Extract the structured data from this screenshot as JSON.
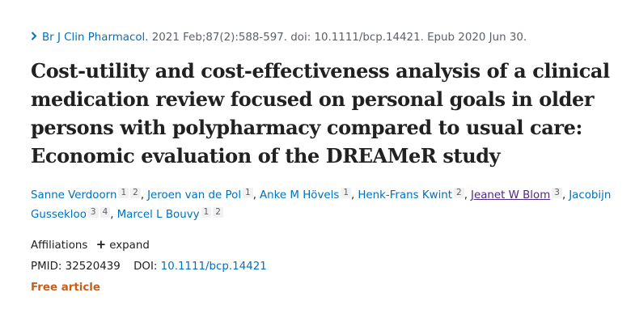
{
  "citation": {
    "chevron_icon": "chevron-right-icon",
    "journal": "Br J Clin Pharmacol.",
    "details": " 2021 Feb;87(2):588-597. doi: 10.1111/bcp.14421. Epub 2020 Jun 30."
  },
  "title": "Cost-utility and cost-effectiveness analysis of a clinical medication review focused on personal goals in older persons with polypharmacy compared to usual care: Economic evaluation of the DREAMeR study",
  "authors": [
    {
      "name": "Sanne Verdoorn",
      "affs": [
        "1",
        "2"
      ]
    },
    {
      "name": "Jeroen van de Pol",
      "affs": [
        "1"
      ]
    },
    {
      "name": "Anke M Hövels",
      "affs": [
        "1"
      ]
    },
    {
      "name": "Henk-Frans Kwint",
      "affs": [
        "2"
      ]
    },
    {
      "name": "Jeanet W Blom",
      "affs": [
        "3"
      ],
      "visited": true
    },
    {
      "name": "Jacobijn Gussekloo",
      "affs": [
        "3",
        "4"
      ]
    },
    {
      "name": "Marcel L Bouvy",
      "affs": [
        "1",
        "2"
      ]
    }
  ],
  "affiliations": {
    "label": "Affiliations",
    "expand_label": "expand"
  },
  "ids": {
    "pmid_label": "PMID:",
    "pmid": "32520439",
    "doi_label": "DOI:",
    "doi": "10.1111/bcp.14421"
  },
  "free_article": "Free article",
  "colors": {
    "link": "#0071bc",
    "visited": "#4e2a84",
    "free": "#cd5c16"
  }
}
